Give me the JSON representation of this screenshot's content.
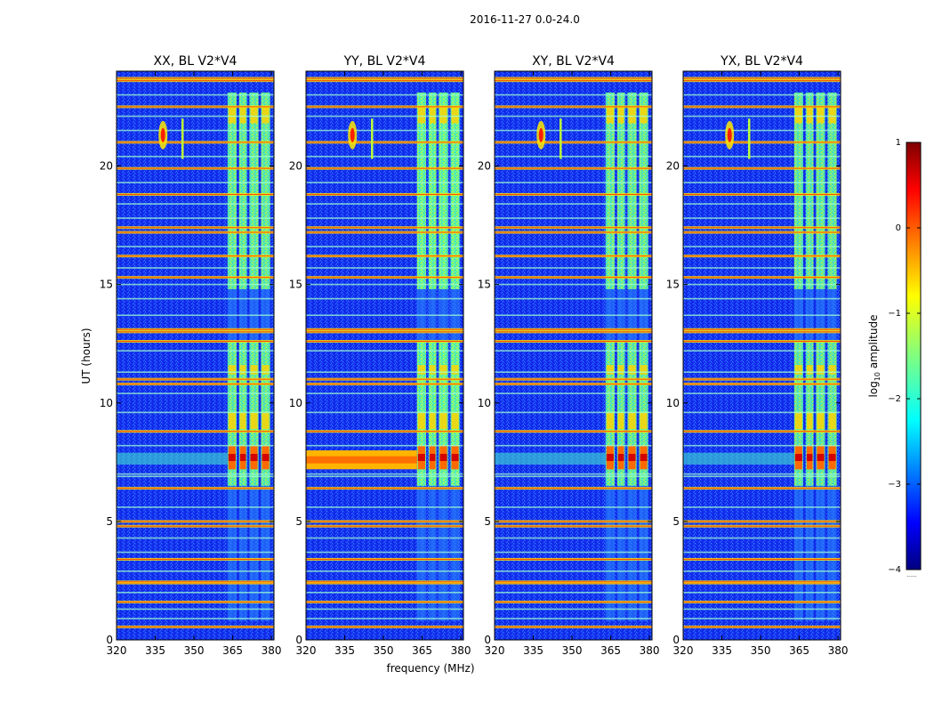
{
  "figure": {
    "suptitle": "2016-11-27 0.0-24.0",
    "xlabel": "frequency (MHz)",
    "ylabel": "UT (hours)",
    "colorbar_label": "log10 amplitude",
    "colorbar_label_base": "log",
    "colorbar_label_sub": "10",
    "colorbar_label_rest": " amplitude"
  },
  "chart_data": [
    {
      "type": "heatmap",
      "title": "XX, BL V2*V4",
      "xlim": [
        320,
        381
      ],
      "ylim": [
        0,
        24
      ],
      "xticks": [
        320,
        335,
        350,
        365,
        380
      ],
      "yticks": [
        0,
        5,
        10,
        15,
        20
      ],
      "rfi_strength": 0.9,
      "broadband_7_8h": "partial",
      "source_freq_mhz": 338,
      "source_time_ut": 21.3
    },
    {
      "type": "heatmap",
      "title": "YY, BL V2*V4",
      "xlim": [
        320,
        381
      ],
      "ylim": [
        0,
        24
      ],
      "xticks": [
        320,
        335,
        350,
        365,
        380
      ],
      "yticks": [
        0,
        5,
        10,
        15,
        20
      ],
      "rfi_strength": 1.0,
      "broadband_7_8h": "full",
      "source_freq_mhz": 338,
      "source_time_ut": 21.3
    },
    {
      "type": "heatmap",
      "title": "XY, BL V2*V4",
      "xlim": [
        320,
        381
      ],
      "ylim": [
        0,
        24
      ],
      "xticks": [
        320,
        335,
        350,
        365,
        380
      ],
      "yticks": [
        0,
        5,
        10,
        15,
        20
      ],
      "rfi_strength": 0.9,
      "broadband_7_8h": "partial",
      "source_freq_mhz": 338,
      "source_time_ut": 21.3
    },
    {
      "type": "heatmap",
      "title": "YX, BL V2*V4",
      "xlim": [
        320,
        381
      ],
      "ylim": [
        0,
        24
      ],
      "xticks": [
        320,
        335,
        350,
        365,
        380
      ],
      "yticks": [
        0,
        5,
        10,
        15,
        20
      ],
      "rfi_strength": 0.85,
      "broadband_7_8h": "partial",
      "source_freq_mhz": 338,
      "source_time_ut": 21.3
    }
  ],
  "colorbar": {
    "vmin": -4,
    "vmax": 1,
    "ticks": [
      1,
      0,
      -1,
      -2,
      -3,
      -4
    ],
    "tick_labels": [
      "1",
      "0",
      "−1",
      "−2",
      "−3",
      "−4"
    ],
    "cmap": "jet",
    "extra_mark": "......"
  },
  "rfi": {
    "band_lo_mhz": 363,
    "band_hi_mhz": 380,
    "subbands_mhz": [
      [
        363,
        366.5
      ],
      [
        367.5,
        370.5
      ],
      [
        371.5,
        375
      ],
      [
        376,
        379.5
      ]
    ],
    "active_periods_ut": [
      [
        6.5,
        8.4
      ],
      [
        8.4,
        12.6
      ],
      [
        14.8,
        23.1
      ]
    ],
    "hot_periods_ut": [
      [
        7.2,
        8.2
      ]
    ],
    "warm_periods_ut": [
      [
        8.9,
        9.6
      ],
      [
        11.2,
        11.6
      ],
      [
        21.8,
        22.5
      ]
    ],
    "faint_periods_ut": [
      [
        0.8,
        6.5
      ],
      [
        12.6,
        14.8
      ]
    ],
    "bright_lines_ut": [
      0.55,
      1.6,
      2.4,
      2.45,
      3.4,
      4.8,
      5.0,
      6.4,
      8.8,
      10.8,
      11.0,
      12.6,
      13.0,
      13.1,
      15.3,
      16.2,
      17.2,
      17.4,
      18.8,
      19.9,
      21.0,
      22.5,
      23.6,
      23.7
    ],
    "faint_lines_ut": [
      0.9,
      1.3,
      2.0,
      2.9,
      3.7,
      4.3,
      5.6,
      6.9,
      7.0,
      8.2,
      9.6,
      10.4,
      11.3,
      12.2,
      13.7,
      14.4,
      15.0,
      15.7,
      16.6,
      17.8,
      18.4,
      19.3,
      20.4,
      21.5,
      22.1,
      23.0
    ]
  }
}
